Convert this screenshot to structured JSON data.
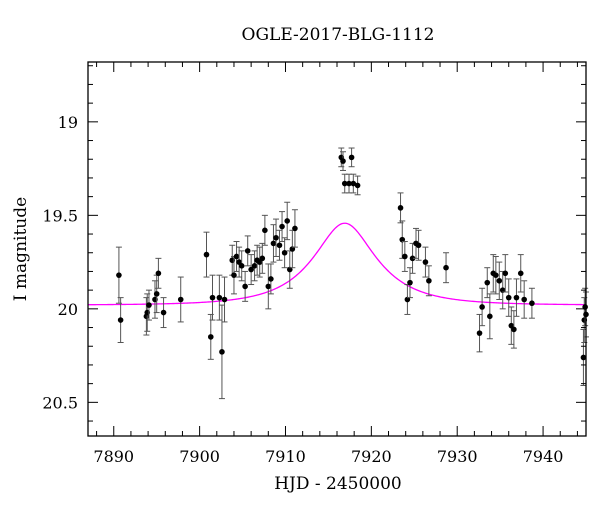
{
  "chart_data": {
    "type": "scatter",
    "title": "OGLE-2017-BLG-1112",
    "xlabel": "HJD - 2450000",
    "ylabel": "I magnitude",
    "xlim": [
      7887,
      7945
    ],
    "ylim": [
      20.68,
      18.68
    ],
    "y_inverted": true,
    "x_ticks": [
      7890,
      7900,
      7910,
      7920,
      7930,
      7940
    ],
    "y_ticks": [
      19,
      19.5,
      20,
      20.5
    ],
    "y_tick_labels": [
      "19",
      "19.5",
      "20",
      "20.5"
    ],
    "grid": false,
    "points_color": "#000000",
    "errorbar_color": "#555555",
    "model_color": "#ff00ff",
    "model": {
      "t0": 7916.9,
      "u0": 0.5,
      "tE": 6.9,
      "base": 19.98,
      "fs": 0.42
    },
    "series": [
      {
        "x": [
          7890.6,
          7890.8,
          7893.8,
          7893.9,
          7894.1,
          7894.8,
          7895.0,
          7895.2,
          7895.8,
          7897.8,
          7900.8,
          7901.3,
          7901.5,
          7902.3,
          7902.6,
          7902.9,
          7903.8,
          7904.0,
          7904.3,
          7904.6,
          7904.9,
          7905.3,
          7905.6,
          7906.0,
          7906.4,
          7906.7,
          7907.0,
          7907.3,
          7907.6,
          7908.0,
          7908.3,
          7908.6,
          7908.9,
          7909.3,
          7909.6,
          7909.9,
          7910.2,
          7910.5,
          7910.8,
          7911.1,
          7916.5,
          7916.7,
          7916.9,
          7917.4,
          7917.7,
          7917.9,
          7918.4,
          7923.4,
          7923.6,
          7923.9,
          7924.2,
          7924.5,
          7924.8,
          7925.2,
          7925.5,
          7926.3,
          7926.7,
          7928.7,
          7932.6,
          7932.9,
          7933.5,
          7933.8,
          7934.2,
          7934.5,
          7934.9,
          7935.3,
          7935.6,
          7936.0,
          7936.3,
          7936.6,
          7936.9,
          7937.4,
          7937.8,
          7938.7,
          7944.7,
          7944.8,
          7944.9,
          7945.0
        ],
        "y": [
          19.82,
          20.06,
          20.04,
          20.02,
          19.98,
          19.95,
          19.92,
          19.81,
          20.02,
          19.95,
          19.71,
          20.15,
          19.94,
          19.94,
          20.23,
          19.95,
          19.74,
          19.82,
          19.72,
          19.75,
          19.77,
          19.88,
          19.69,
          19.79,
          19.77,
          19.74,
          19.75,
          19.73,
          19.58,
          19.88,
          19.84,
          19.65,
          19.62,
          19.66,
          19.56,
          19.7,
          19.53,
          19.79,
          19.68,
          19.57,
          19.19,
          19.21,
          19.33,
          19.33,
          19.19,
          19.33,
          19.34,
          19.46,
          19.63,
          19.72,
          19.95,
          19.86,
          19.73,
          19.65,
          19.66,
          19.75,
          19.85,
          19.78,
          20.13,
          19.99,
          19.86,
          20.04,
          19.81,
          19.82,
          19.85,
          19.9,
          19.81,
          19.94,
          20.09,
          20.11,
          19.94,
          19.81,
          19.95,
          19.97,
          20.26,
          20.06,
          19.99,
          20.03
        ],
        "yerr": [
          0.15,
          0.12,
          0.1,
          0.1,
          0.08,
          0.1,
          0.1,
          0.08,
          0.08,
          0.12,
          0.12,
          0.12,
          0.12,
          0.12,
          0.25,
          0.12,
          0.08,
          0.1,
          0.08,
          0.08,
          0.08,
          0.08,
          0.08,
          0.08,
          0.08,
          0.08,
          0.08,
          0.08,
          0.08,
          0.12,
          0.08,
          0.1,
          0.1,
          0.08,
          0.08,
          0.08,
          0.1,
          0.1,
          0.1,
          0.1,
          0.05,
          0.05,
          0.05,
          0.05,
          0.05,
          0.05,
          0.05,
          0.08,
          0.1,
          0.08,
          0.08,
          0.08,
          0.08,
          0.08,
          0.08,
          0.08,
          0.08,
          0.08,
          0.1,
          0.1,
          0.08,
          0.12,
          0.1,
          0.1,
          0.1,
          0.1,
          0.1,
          0.1,
          0.1,
          0.1,
          0.1,
          0.1,
          0.1,
          0.08,
          0.15,
          0.12,
          0.1,
          0.12
        ]
      }
    ]
  }
}
